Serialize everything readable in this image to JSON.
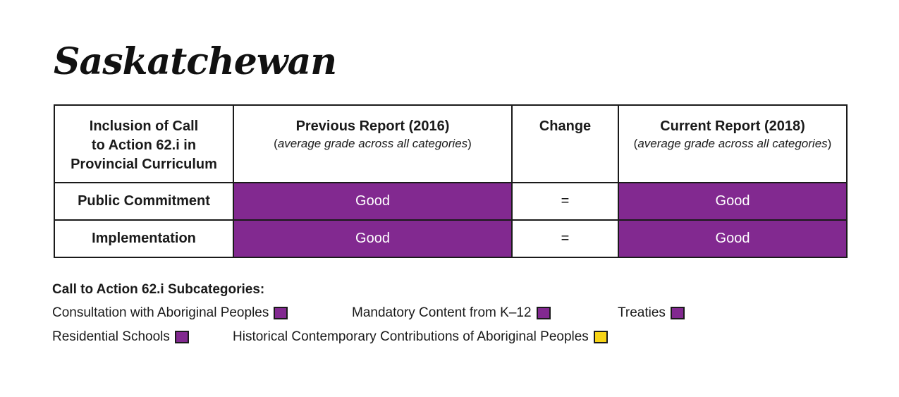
{
  "title": "Saskatchewan",
  "colors": {
    "good": "#822990",
    "yellow": "#f7d417"
  },
  "table": {
    "headers": {
      "inclusion": [
        "Inclusion of Call",
        "to Action 62.i in",
        "Provincial Curriculum"
      ],
      "previous": {
        "title": "Previous Report (2016)",
        "subtitle": "average grade across all categories"
      },
      "change": "Change",
      "current": {
        "title": "Current Report (2018)",
        "subtitle": "average grade across all categories"
      }
    },
    "rows": [
      {
        "label": "Public Commitment",
        "previous": "Good",
        "change": "=",
        "current": "Good"
      },
      {
        "label": "Implementation",
        "previous": "Good",
        "change": "=",
        "current": "Good"
      }
    ]
  },
  "legend": {
    "title": "Call to Action 62.i Subcategories:",
    "row1": [
      {
        "label": "Consultation with Aboriginal Peoples",
        "color": "#822990"
      },
      {
        "label": "Mandatory Content from K–12",
        "color": "#822990"
      },
      {
        "label": "Treaties",
        "color": "#822990"
      }
    ],
    "row2": [
      {
        "label": "Residential Schools",
        "color": "#822990"
      },
      {
        "label": "Historical Contemporary Contributions of Aboriginal Peoples",
        "color": "#f7d417"
      }
    ]
  }
}
